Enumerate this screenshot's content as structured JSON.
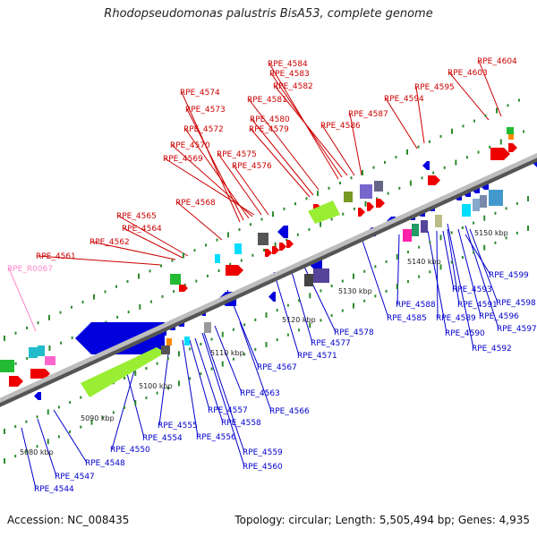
{
  "title": "Rhodopseudomonas palustris BisA53, complete genome",
  "footer": {
    "accession": "Accession: NC_008435",
    "summary": "Topology: circular; Length: 5,505,494 bp; Genes: 4,935"
  },
  "colors": {
    "forward_label": "#cc0000",
    "reverse_label": "#0000cc",
    "rna_label": "#ff88cc",
    "backbone": "#8a8a8a",
    "tick": "#2e8b2e"
  },
  "kbp_ticks": [
    "5080 kbp",
    "5090 kbp",
    "5100 kbp",
    "5110 kbp",
    "5120 kbp",
    "5130 kbp",
    "5140 kbp",
    "5150 kbp"
  ],
  "forward_labels": [
    "RPE_4604",
    "RPE_4584",
    "RPE_4583",
    "RPE_4603",
    "RPE_4582",
    "RPE_4595",
    "RPE_4574",
    "RPE_4581",
    "RPE_4594",
    "RPE_4573",
    "RPE_4587",
    "RPE_4580",
    "RPE_4572",
    "RPE_4579",
    "RPE_4586",
    "RPE_4570",
    "RPE_4575",
    "RPE_4569",
    "RPE_4576",
    "RPE_4568",
    "RPE_4565",
    "RPE_4564",
    "RPE_4562",
    "RPE_4561"
  ],
  "rna_labels": [
    "RPE_R0067"
  ],
  "reverse_labels": [
    "RPE_4599",
    "RPE_4593",
    "RPE_4598",
    "RPE_4588",
    "RPE_4591",
    "RPE_4596",
    "RPE_4585",
    "RPE_4589",
    "RPE_4597",
    "RPE_4590",
    "RPE_4578",
    "RPE_4592",
    "RPE_4577",
    "RPE_4571",
    "RPE_4567",
    "RPE_4563",
    "RPE_4566",
    "RPE_4557",
    "RPE_4558",
    "RPE_4555",
    "RPE_4556",
    "RPE_4554",
    "RPE_4559",
    "RPE_4550",
    "RPE_4560",
    "RPE_4548",
    "RPE_4547",
    "RPE_4544"
  ]
}
